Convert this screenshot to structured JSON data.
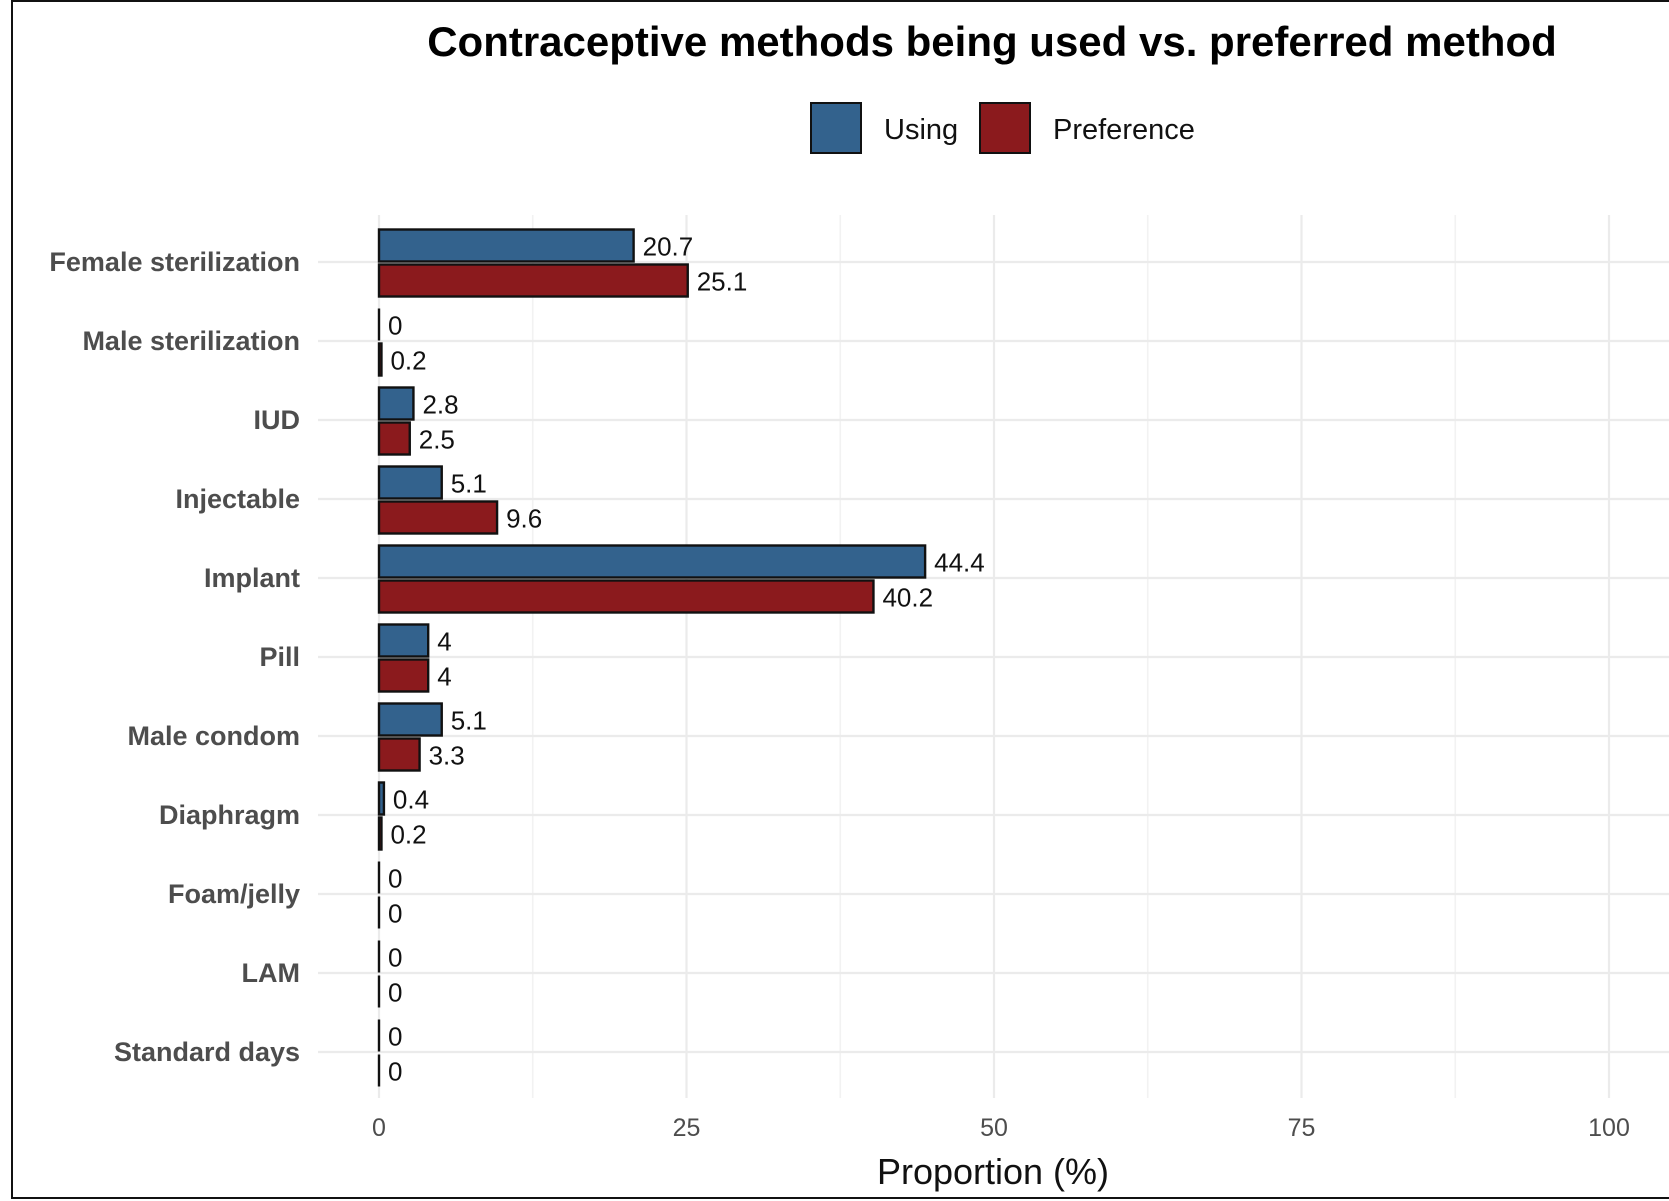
{
  "chart_data": {
    "type": "bar",
    "orientation": "horizontal",
    "title": "Contraceptive methods being used vs. preferred method",
    "xlabel": "Proportion (%)",
    "ylabel": "",
    "xlim": [
      0,
      100
    ],
    "xticks": [
      0,
      25,
      50,
      75,
      100
    ],
    "grid": true,
    "legend_position": "top",
    "categories": [
      "Female sterilization",
      "Male sterilization",
      "IUD",
      "Injectable",
      "Implant",
      "Pill",
      "Male condom",
      "Diaphragm",
      "Foam/jelly",
      "LAM",
      "Standard days"
    ],
    "series": [
      {
        "name": "Using",
        "color": "#33628d",
        "values": [
          20.7,
          0,
          2.8,
          5.1,
          44.4,
          4,
          5.1,
          0.4,
          0,
          0,
          0
        ]
      },
      {
        "name": "Preference",
        "color": "#8b1a1d",
        "values": [
          25.1,
          0.2,
          2.5,
          9.6,
          40.2,
          4,
          3.3,
          0.2,
          0,
          0,
          0
        ]
      }
    ]
  }
}
